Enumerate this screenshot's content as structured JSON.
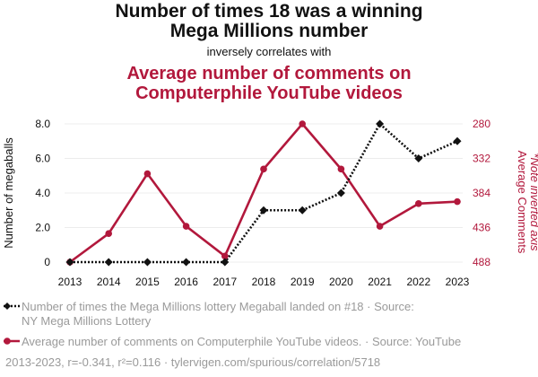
{
  "title": {
    "line1": "Number of times 18 was a winning",
    "line2": "Mega Millions number",
    "subtitle": "inversely correlates with",
    "red_line1": "Average number of comments on",
    "red_line2": "Computerphile YouTube videos"
  },
  "chart_data": {
    "type": "line",
    "categories": [
      "2013",
      "2014",
      "2015",
      "2016",
      "2017",
      "2018",
      "2019",
      "2020",
      "2021",
      "2022",
      "2023"
    ],
    "series": [
      {
        "name": "Number of times the Mega Millions lottery Megaball landed on #18 · Source: NY Mega Millions Lottery",
        "axis": "left",
        "color": "#111111",
        "style": "dotted",
        "marker": "diamond",
        "values": [
          0,
          0,
          0,
          0,
          0,
          3,
          3,
          4,
          8,
          6,
          7
        ]
      },
      {
        "name": "Average number of comments on Computerphile YouTube videos. · Source: YouTube",
        "axis": "right",
        "color": "#b2183c",
        "style": "solid",
        "marker": "circle",
        "values": [
          488,
          445,
          355,
          434,
          479,
          348,
          280,
          348,
          434,
          400,
          397
        ]
      }
    ],
    "left_axis": {
      "label": "Number of megaballs",
      "ticks": [
        "8.0",
        "6.0",
        "4.0",
        "2.0",
        "0"
      ],
      "range": [
        0,
        8
      ]
    },
    "right_axis": {
      "label": "Average Comments",
      "label2": "*Note inverted axis",
      "ticks": [
        "280",
        "332",
        "384",
        "436",
        "488"
      ],
      "range": [
        280,
        488
      ],
      "inverted": true
    },
    "grid": true
  },
  "legend": {
    "series1_line1": "Number of times the Mega Millions lottery Megaball landed on #18 · Source:",
    "series1_line2": "NY Mega Millions Lottery",
    "series2": "Average number of comments on Computerphile YouTube videos. · Source: YouTube"
  },
  "footer": "2013-2023, r=-0.341, r²=0.116 · tylervigen.com/spurious/correlation/5718",
  "colors": {
    "black": "#111111",
    "red": "#b2183c",
    "gray": "#9a9a9a"
  }
}
